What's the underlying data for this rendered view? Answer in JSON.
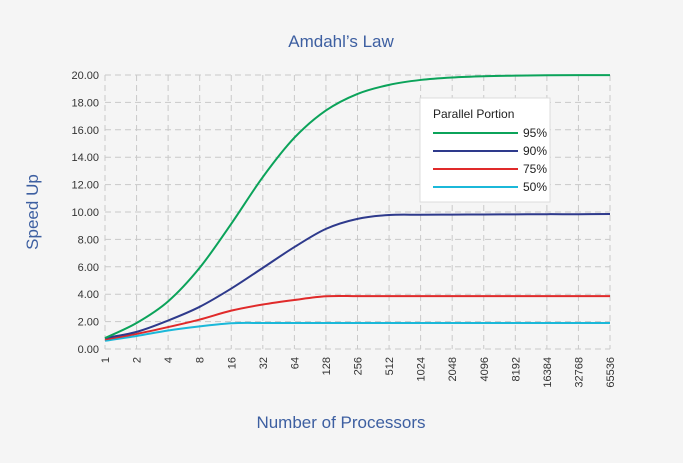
{
  "chart_data": {
    "type": "line",
    "title": "Amdahl’s Law",
    "xlabel": "Number of Processors",
    "ylabel": "Speed Up",
    "x_ticks": [
      "1",
      "2",
      "4",
      "8",
      "16",
      "32",
      "64",
      "128",
      "256",
      "512",
      "1024",
      "2048",
      "4096",
      "8192",
      "16384",
      "32768",
      "65536"
    ],
    "y_ticks": [
      "0.00",
      "2.00",
      "4.00",
      "6.00",
      "8.00",
      "10.00",
      "12.00",
      "14.00",
      "16.00",
      "18.00",
      "20.00"
    ],
    "xscale": "log2",
    "xlim": [
      1,
      65536
    ],
    "ylim": [
      0,
      20
    ],
    "grid": true,
    "legend": {
      "title": "Parallel Portion",
      "placement": "top-right"
    },
    "series": [
      {
        "name": "95%",
        "color": "#0ba35a",
        "x": [
          1,
          2,
          4,
          8,
          16,
          32,
          64,
          128,
          256,
          512,
          1024,
          2048,
          4096,
          8192,
          16384,
          32768,
          65536
        ],
        "y": [
          0.8,
          1.9,
          3.48,
          5.93,
          9.14,
          12.55,
          15.42,
          17.41,
          18.62,
          19.28,
          19.64,
          19.82,
          19.91,
          19.95,
          19.98,
          19.99,
          19.99
        ]
      },
      {
        "name": "90%",
        "color": "#2e3a8c",
        "x": [
          1,
          2,
          4,
          8,
          16,
          32,
          64,
          128,
          256,
          512,
          1024,
          2048,
          4096,
          8192,
          16384,
          32768,
          65536
        ],
        "y": [
          0.8,
          1.25,
          2.08,
          3.08,
          4.41,
          5.92,
          7.44,
          8.77,
          9.5,
          9.78,
          9.8,
          9.81,
          9.82,
          9.83,
          9.84,
          9.84,
          9.85
        ]
      },
      {
        "name": "75%",
        "color": "#e02a2a",
        "x": [
          1,
          2,
          4,
          8,
          16,
          32,
          64,
          128,
          256,
          512,
          1024,
          2048,
          4096,
          8192,
          16384,
          32768,
          65536
        ],
        "y": [
          0.7,
          1.1,
          1.6,
          2.15,
          2.8,
          3.25,
          3.58,
          3.85,
          3.86,
          3.86,
          3.86,
          3.86,
          3.86,
          3.86,
          3.86,
          3.86,
          3.86
        ]
      },
      {
        "name": "50%",
        "color": "#1bb8d9",
        "x": [
          1,
          2,
          4,
          8,
          16,
          32,
          64,
          128,
          256,
          512,
          1024,
          2048,
          4096,
          8192,
          16384,
          32768,
          65536
        ],
        "y": [
          0.6,
          0.95,
          1.35,
          1.65,
          1.88,
          1.9,
          1.9,
          1.9,
          1.9,
          1.9,
          1.9,
          1.9,
          1.9,
          1.9,
          1.9,
          1.9,
          1.9
        ]
      }
    ]
  }
}
